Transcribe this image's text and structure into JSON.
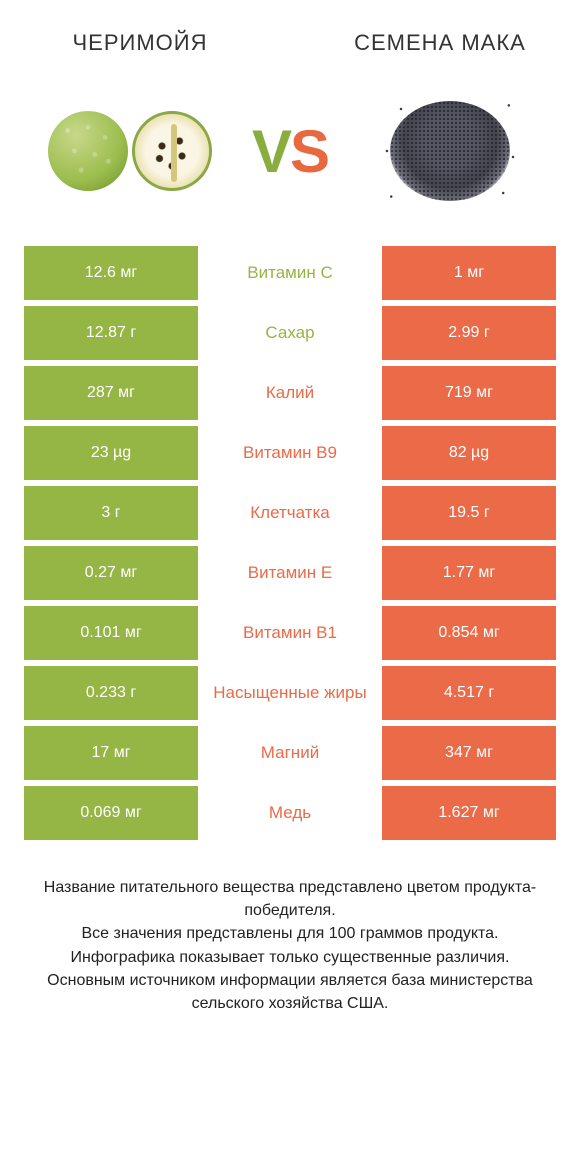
{
  "colors": {
    "green": "#95b544",
    "orange": "#eb6a47",
    "text_dark": "#333333"
  },
  "header": {
    "left": "ЧЕРИМОЙЯ",
    "right": "СЕМЕНА МАКА"
  },
  "vs": {
    "v": "V",
    "s": "S"
  },
  "rows": [
    {
      "left": "12.6 мг",
      "label": "Витамин C",
      "right": "1 мг",
      "winner": "left"
    },
    {
      "left": "12.87 г",
      "label": "Сахар",
      "right": "2.99 г",
      "winner": "left"
    },
    {
      "left": "287 мг",
      "label": "Калий",
      "right": "719 мг",
      "winner": "right"
    },
    {
      "left": "23 µg",
      "label": "Витамин B9",
      "right": "82 µg",
      "winner": "right"
    },
    {
      "left": "3 г",
      "label": "Клетчатка",
      "right": "19.5 г",
      "winner": "right"
    },
    {
      "left": "0.27 мг",
      "label": "Витамин E",
      "right": "1.77 мг",
      "winner": "right"
    },
    {
      "left": "0.101 мг",
      "label": "Витамин B1",
      "right": "0.854 мг",
      "winner": "right"
    },
    {
      "left": "0.233 г",
      "label": "Насыщенные жиры",
      "right": "4.517 г",
      "winner": "right"
    },
    {
      "left": "17 мг",
      "label": "Магний",
      "right": "347 мг",
      "winner": "right"
    },
    {
      "left": "0.069 мг",
      "label": "Медь",
      "right": "1.627 мг",
      "winner": "right"
    }
  ],
  "footer": {
    "line1": "Название питательного вещества представлено цветом продукта-победителя.",
    "line2": "Все значения представлены для 100 граммов продукта.",
    "line3": "Инфографика показывает только существенные различия.",
    "line4": "Основным источником информации является база министерства сельского хозяйства США."
  }
}
